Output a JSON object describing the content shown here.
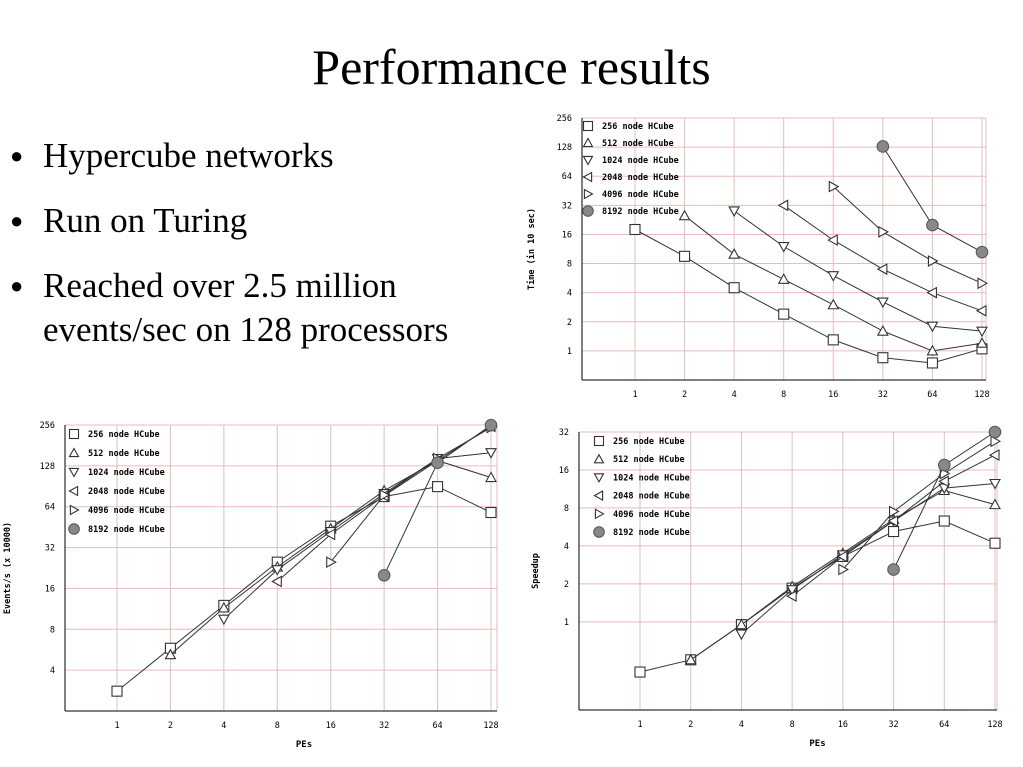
{
  "slide": {
    "title": "Performance results",
    "bullets": [
      "Hypercube networks",
      "Run on Turing",
      "Reached over 2.5 million events/sec on 128 processors"
    ]
  },
  "colors": {
    "grid": "#e7bcbc",
    "axis": "#000000",
    "series_line": "#333333",
    "filled_marker": "#888888"
  },
  "chart_data": [
    {
      "id": "time",
      "type": "line",
      "title": "",
      "xlabel": "",
      "ylabel": "Time (in 10 sec)",
      "x_scale": "log2",
      "y_scale": "log2",
      "x": [
        1,
        2,
        4,
        8,
        16,
        32,
        64,
        128
      ],
      "x_tick_labels": [
        "1",
        "2",
        "4",
        "8",
        "16",
        "32",
        "64",
        "128"
      ],
      "y_ticks": [
        1,
        2,
        4,
        8,
        16,
        32,
        64,
        128,
        256
      ],
      "y_tick_labels": [
        "1",
        "2",
        "4",
        "8",
        "16",
        "32",
        "64",
        "128",
        "256"
      ],
      "xlim": [
        0.5,
        128
      ],
      "ylim": [
        0.5,
        256
      ],
      "grid": true,
      "legend_position": "top-left",
      "series": [
        {
          "name": "256 node HCube",
          "marker": "square",
          "values": [
            18,
            9.5,
            4.5,
            2.4,
            1.3,
            0.85,
            0.75,
            1.05
          ]
        },
        {
          "name": "512 node HCube",
          "marker": "triangle-up",
          "values": [
            null,
            25,
            10,
            5.5,
            3,
            1.6,
            1,
            1.2
          ]
        },
        {
          "name": "1024 node HCube",
          "marker": "triangle-down",
          "values": [
            null,
            null,
            28,
            12,
            6,
            3.2,
            1.8,
            1.6
          ]
        },
        {
          "name": "2048 node HCube",
          "marker": "triangle-left",
          "values": [
            null,
            null,
            null,
            32,
            14,
            7,
            4,
            2.6
          ]
        },
        {
          "name": "4096 node HCube",
          "marker": "triangle-right",
          "values": [
            null,
            null,
            null,
            null,
            50,
            17,
            8.5,
            5
          ]
        },
        {
          "name": "8192 node HCube",
          "marker": "circle-filled",
          "values": [
            null,
            null,
            null,
            null,
            null,
            130,
            20,
            10.5
          ]
        }
      ]
    },
    {
      "id": "events",
      "type": "line",
      "title": "",
      "xlabel": "PEs",
      "ylabel": "Events/s (x 10000)",
      "x_scale": "log2",
      "y_scale": "log2",
      "x": [
        1,
        2,
        4,
        8,
        16,
        32,
        64,
        128
      ],
      "x_tick_labels": [
        "1",
        "2",
        "4",
        "8",
        "16",
        "32",
        "64",
        "128"
      ],
      "y_ticks": [
        4,
        8,
        16,
        32,
        64,
        128,
        256
      ],
      "y_tick_labels": [
        "4",
        "8",
        "16",
        "32",
        "64",
        "128",
        "256"
      ],
      "xlim": [
        0.5,
        128
      ],
      "ylim": [
        2,
        256
      ],
      "grid": true,
      "legend_position": "top-left",
      "series": [
        {
          "name": "256 node HCube",
          "marker": "square",
          "values": [
            2.8,
            5.8,
            12,
            25,
            46,
            76,
            90,
            58
          ]
        },
        {
          "name": "512 node HCube",
          "marker": "triangle-up",
          "values": [
            null,
            5.2,
            11.5,
            23,
            44,
            84,
            140,
            105
          ]
        },
        {
          "name": "1024 node HCube",
          "marker": "triangle-down",
          "values": [
            null,
            null,
            9.5,
            22,
            42,
            80,
            145,
            160
          ]
        },
        {
          "name": "2048 node HCube",
          "marker": "triangle-left",
          "values": [
            null,
            null,
            null,
            18,
            40,
            77,
            140,
            250
          ]
        },
        {
          "name": "4096 node HCube",
          "marker": "triangle-right",
          "values": [
            null,
            null,
            null,
            null,
            25,
            78,
            145,
            245
          ]
        },
        {
          "name": "8192 node HCube",
          "marker": "circle-filled",
          "values": [
            null,
            null,
            null,
            null,
            null,
            20,
            135,
            255
          ]
        }
      ]
    },
    {
      "id": "speedup",
      "type": "line",
      "title": "",
      "xlabel": "PEs",
      "ylabel": "Speedup",
      "x_scale": "log2",
      "y_scale": "log2",
      "x": [
        1,
        2,
        4,
        8,
        16,
        32,
        64,
        128
      ],
      "x_tick_labels": [
        "1",
        "2",
        "4",
        "8",
        "16",
        "32",
        "64",
        "128"
      ],
      "y_ticks": [
        1,
        2,
        4,
        8,
        16,
        32
      ],
      "y_tick_labels": [
        "1",
        "2",
        "4",
        "8",
        "16",
        "32"
      ],
      "xlim": [
        0.5,
        128
      ],
      "ylim": [
        0.2,
        32
      ],
      "grid": true,
      "legend_position": "top-left",
      "series": [
        {
          "name": "256 node HCube",
          "marker": "square",
          "values": [
            0.4,
            0.5,
            0.95,
            1.85,
            3.3,
            5.2,
            6.3,
            4.2
          ]
        },
        {
          "name": "512 node HCube",
          "marker": "triangle-up",
          "values": [
            null,
            0.5,
            0.95,
            1.9,
            3.5,
            6.5,
            11,
            8.5
          ]
        },
        {
          "name": "1024 node HCube",
          "marker": "triangle-down",
          "values": [
            null,
            null,
            0.8,
            1.8,
            3.4,
            6.3,
            11.5,
            12.5
          ]
        },
        {
          "name": "2048 node HCube",
          "marker": "triangle-left",
          "values": [
            null,
            null,
            null,
            1.6,
            3.3,
            6.3,
            13,
            21
          ]
        },
        {
          "name": "4096 node HCube",
          "marker": "triangle-right",
          "values": [
            null,
            null,
            null,
            null,
            2.6,
            7.5,
            15,
            27
          ]
        },
        {
          "name": "8192 node HCube",
          "marker": "circle-filled",
          "values": [
            null,
            null,
            null,
            null,
            null,
            2.6,
            17.5,
            32
          ]
        }
      ]
    }
  ]
}
